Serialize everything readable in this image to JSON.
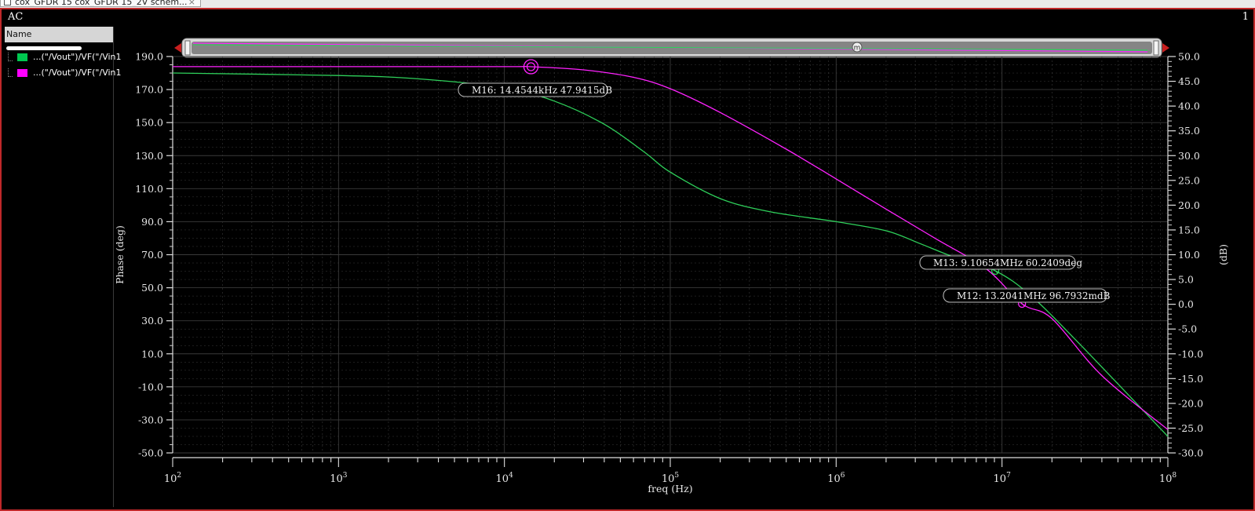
{
  "tab": {
    "label": "cox_GFDR 15 cox_GFDR 15_2V schem..."
  },
  "window": {
    "title": "AC",
    "index": "1"
  },
  "legend": {
    "header": "Name",
    "items": [
      {
        "label": "...(\"/Vout\")/VF(\"/Vin1",
        "color": "#00c850"
      },
      {
        "label": "...(\"/Vout\")/VF(\"/Vin1",
        "color": "#ff00ff"
      }
    ]
  },
  "zoom": {
    "handle_label": "m"
  },
  "colors": {
    "green": "#2ed05a",
    "magenta": "#ff22ff",
    "grid": "#3a3a3a"
  },
  "chart_data": {
    "type": "line",
    "xlabel": "freq (Hz)",
    "ylabel_left": "Phase (deg)",
    "ylabel_right": "(dB)",
    "xscale": "log",
    "xlim": [
      100,
      100000000
    ],
    "x_ticks": [
      {
        "value": 100,
        "base": "10",
        "exp": "2"
      },
      {
        "value": 1000,
        "base": "10",
        "exp": "3"
      },
      {
        "value": 10000,
        "base": "10",
        "exp": "4"
      },
      {
        "value": 100000,
        "base": "10",
        "exp": "5"
      },
      {
        "value": 1000000,
        "base": "10",
        "exp": "6"
      },
      {
        "value": 10000000,
        "base": "10",
        "exp": "7"
      },
      {
        "value": 100000000,
        "base": "10",
        "exp": "8"
      }
    ],
    "ylim_left": [
      -50,
      190
    ],
    "left_ticks": [
      "190.0",
      "170.0",
      "150.0",
      "130.0",
      "110.0",
      "90.0",
      "70.0",
      "50.0",
      "30.0",
      "10.0",
      "-10.0",
      "-30.0",
      "-50.0"
    ],
    "ylim_right": [
      -30,
      50
    ],
    "right_ticks": [
      "50.0",
      "45.0",
      "40.0",
      "35.0",
      "30.0",
      "25.0",
      "20.0",
      "15.0",
      "10.0",
      "5.0",
      "0.0",
      "-5.0",
      "-10.0",
      "-15.0",
      "-20.0",
      "-25.0",
      "-30.0"
    ],
    "grid": true,
    "series": [
      {
        "axis": "left",
        "color": "#2ed05a",
        "x": [
          100,
          1000,
          3000,
          10000,
          20000,
          40000,
          70000,
          100000,
          200000,
          400000,
          1000000,
          2000000,
          3160000,
          5000000,
          9106540,
          15000000,
          30000000,
          100000000
        ],
        "y": [
          180,
          178.5,
          176.5,
          171,
          163,
          149,
          132,
          120,
          104,
          96,
          90,
          84.5,
          77,
          69,
          60.24,
          45,
          15,
          -40
        ]
      },
      {
        "axis": "right",
        "color": "#ff22ff",
        "x": [
          100,
          1000,
          10000,
          14454.4,
          30000,
          60000,
          100000,
          200000,
          500000,
          1000000,
          2000000,
          4000000,
          8000000,
          13204100,
          20000000,
          40000000,
          100000000
        ],
        "y": [
          47.96,
          47.96,
          47.95,
          47.94,
          47.3,
          45.8,
          43.5,
          38.7,
          31.3,
          25.3,
          19.2,
          13.2,
          7.2,
          0.0968,
          -2.9,
          -14.4,
          -25.3
        ]
      }
    ],
    "markers": [
      {
        "id": "M16",
        "label": "M16: 14.4544kHz 47.9415dB",
        "x": 14454.4,
        "y": 47.9415,
        "axis": "right",
        "color": "#ff22ff",
        "style": "double"
      },
      {
        "id": "M13",
        "label": "M13: 9.10654MHz 60.2409deg",
        "x": 9106540,
        "y": 60.2409,
        "axis": "left",
        "color": "#2ed05a",
        "style": "single"
      },
      {
        "id": "M12",
        "label": "M12: 13.2041MHz 96.7932mdB",
        "x": 13204100,
        "y": 0.0967932,
        "axis": "right",
        "color": "#ff22ff",
        "style": "single"
      }
    ]
  }
}
